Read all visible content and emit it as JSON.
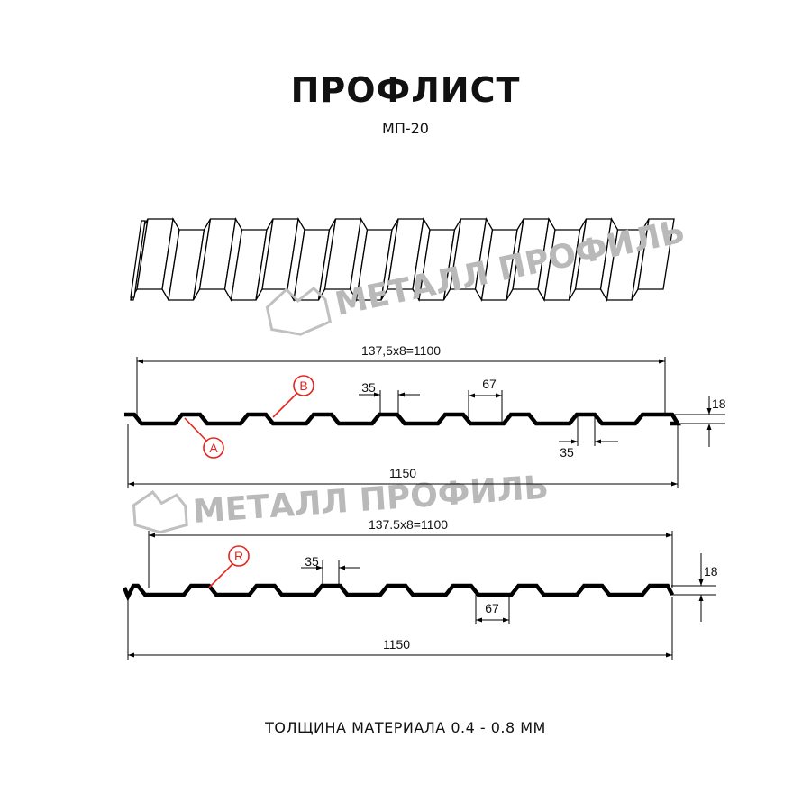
{
  "header": {
    "title": "ПРОФЛИСТ",
    "subtitle": "МП-20"
  },
  "watermark": {
    "text": "МЕТАЛЛ ПРОФИЛЬ",
    "color": "#b9b9b9"
  },
  "profile_a": {
    "pitch_label": "137,5x8=1100",
    "width_label": "1150",
    "top_width_label": "35",
    "bottom_width_label": "67",
    "bottom_right_label": "35",
    "height_label": "18",
    "markers": [
      "A",
      "B"
    ]
  },
  "profile_r": {
    "pitch_label": "137.5x8=1100",
    "width_label": "1150",
    "top_width_label": "35",
    "bottom_width_label": "67",
    "height_label": "18",
    "markers": [
      "R"
    ]
  },
  "footer": {
    "thickness": "ТОЛЩИНА МАТЕРИАЛА 0.4 - 0.8 ММ"
  },
  "colors": {
    "marker": "#e52420",
    "line": "#000000"
  }
}
